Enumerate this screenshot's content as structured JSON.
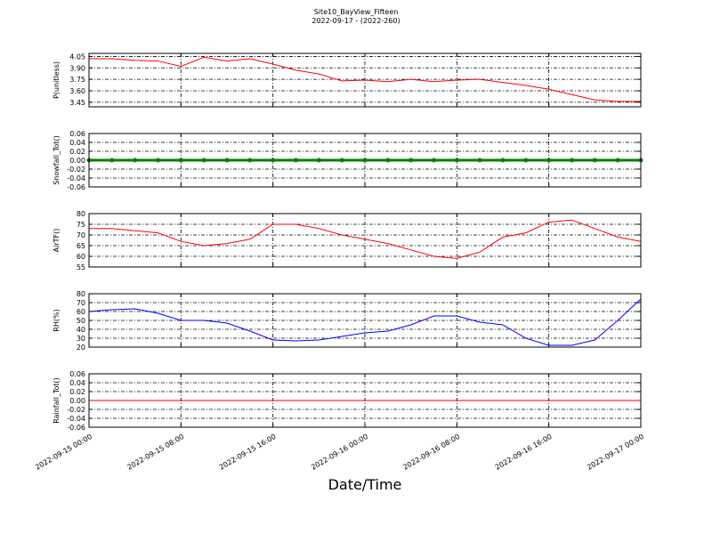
{
  "title": "Site10_BayView_Fifteen",
  "subtitle": "2022-09-17 - (2022-260)",
  "xlabel": "Date/Time",
  "xlim": [
    "2022-09-15 00:00",
    "2022-09-17 00:00"
  ],
  "xticks": [
    "2022-09-15 00:00",
    "2022-09-15 08:00",
    "2022-09-15 16:00",
    "2022-09-16 00:00",
    "2022-09-16 08:00",
    "2022-09-16 16:00",
    "2022-09-17 00:00"
  ],
  "x": [
    "2022-09-15 00:00",
    "2022-09-15 02:00",
    "2022-09-15 04:00",
    "2022-09-15 06:00",
    "2022-09-15 08:00",
    "2022-09-15 10:00",
    "2022-09-15 12:00",
    "2022-09-15 14:00",
    "2022-09-15 16:00",
    "2022-09-15 18:00",
    "2022-09-15 20:00",
    "2022-09-15 22:00",
    "2022-09-16 00:00",
    "2022-09-16 02:00",
    "2022-09-16 04:00",
    "2022-09-16 06:00",
    "2022-09-16 08:00",
    "2022-09-16 10:00",
    "2022-09-16 12:00",
    "2022-09-16 14:00",
    "2022-09-16 16:00",
    "2022-09-16 18:00",
    "2022-09-16 20:00",
    "2022-09-16 22:00",
    "2022-09-17 00:00"
  ],
  "chart_data": [
    {
      "type": "line",
      "ylabel": "P(unitless)",
      "ylim": [
        3.39,
        4.09
      ],
      "grid": true,
      "yticks": [
        3.45,
        {
          "value": 3.6,
          "label": "3.60"
        },
        3.75,
        {
          "value": 3.9,
          "label": "3.90"
        },
        4.05
      ],
      "series": [
        {
          "color": "#ff0000",
          "values": [
            4.02,
            4.02,
            4.0,
            3.99,
            3.92,
            4.04,
            3.99,
            4.02,
            3.95,
            3.87,
            3.82,
            3.73,
            3.74,
            3.72,
            3.75,
            3.72,
            3.74,
            3.75,
            3.71,
            3.67,
            3.62,
            3.55,
            3.48,
            3.46,
            3.46
          ]
        }
      ]
    },
    {
      "type": "line",
      "ylabel": "Snowfall_Tot()",
      "ylim": [
        -0.06,
        0.06
      ],
      "grid": true,
      "markers": true,
      "yticks": [
        -0.06,
        -0.04,
        -0.02,
        {
          "value": 0,
          "label": "0.00"
        },
        0.02,
        0.04,
        0.06
      ],
      "series": [
        {
          "color": "#008000",
          "values": [
            0,
            0,
            0,
            0,
            0,
            0,
            0,
            0,
            0,
            0,
            0,
            0,
            0,
            0,
            0,
            0,
            0,
            0,
            0,
            0,
            0,
            0,
            0,
            0,
            0
          ]
        }
      ]
    },
    {
      "type": "line",
      "ylabel": "AirTF()",
      "ylim": [
        55,
        80
      ],
      "grid": true,
      "yticks": [
        55,
        60,
        65,
        70,
        75,
        80
      ],
      "series": [
        {
          "color": "#ff0000",
          "values": [
            73,
            73,
            72,
            71,
            67,
            65,
            66,
            68,
            75,
            75,
            73,
            70,
            68,
            66,
            63,
            60,
            59,
            62,
            69,
            71,
            76,
            77,
            73,
            69,
            67
          ]
        }
      ]
    },
    {
      "type": "line",
      "ylabel": "RH(%)",
      "ylim": [
        20,
        80
      ],
      "grid": true,
      "yticks": [
        20,
        30,
        40,
        50,
        60,
        70,
        80
      ],
      "series": [
        {
          "color": "#0000ff",
          "values": [
            60,
            62,
            63,
            58,
            50,
            50,
            47,
            38,
            28,
            27,
            28,
            32,
            36,
            38,
            45,
            55,
            55,
            48,
            45,
            30,
            22,
            22,
            28,
            50,
            74
          ]
        }
      ]
    },
    {
      "type": "line",
      "ylabel": "Rainfall_Tot()",
      "ylim": [
        -0.06,
        0.06
      ],
      "grid": true,
      "yticks": [
        -0.06,
        -0.04,
        -0.02,
        {
          "value": 0,
          "label": "0.00"
        },
        0.02,
        0.04,
        0.06
      ],
      "series": [
        {
          "color": "#ff0000",
          "values": [
            0,
            0,
            0,
            0,
            0,
            0,
            0,
            0,
            0,
            0,
            0,
            0,
            0,
            0,
            0,
            0,
            0,
            0,
            0,
            0,
            0,
            0,
            0,
            0,
            0
          ]
        }
      ]
    }
  ]
}
